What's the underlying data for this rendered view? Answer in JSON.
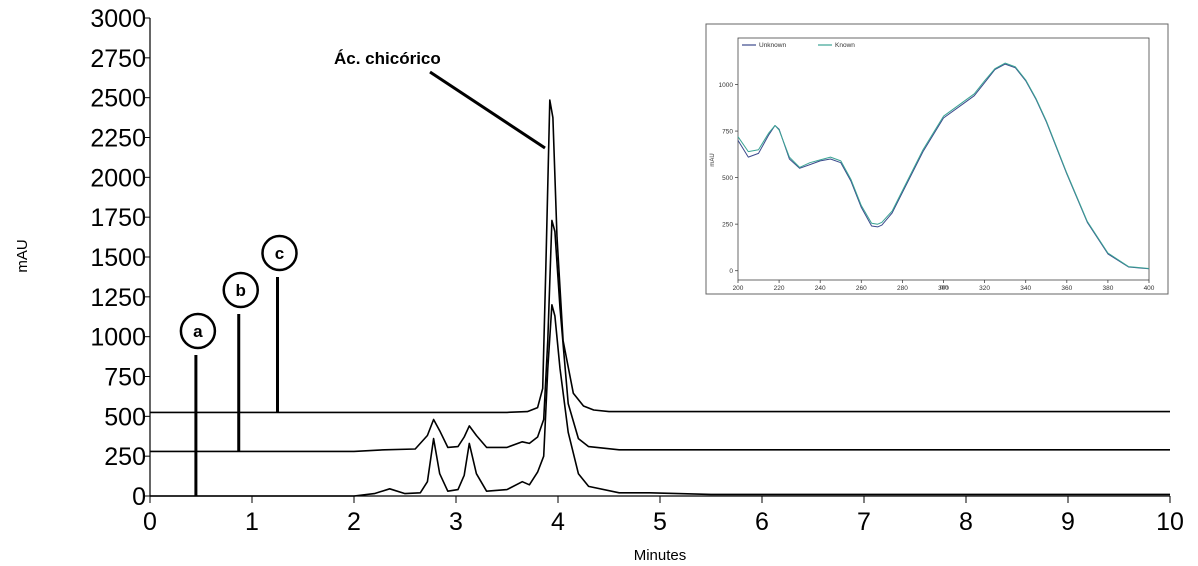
{
  "chart_data": [
    {
      "type": "line",
      "xlabel": "Minutes",
      "ylabel": "mAU",
      "xlim": [
        0,
        10
      ],
      "ylim": [
        0,
        3000
      ],
      "x_ticks": [
        "0",
        "1",
        "2",
        "3",
        "4",
        "5",
        "6",
        "7",
        "8",
        "9",
        "10"
      ],
      "y_ticks": [
        "0",
        "250",
        "500",
        "750",
        "1000",
        "1250",
        "1500",
        "1750",
        "2000",
        "2250",
        "2500",
        "2750",
        "3000"
      ],
      "annotation": {
        "label": "Ác. chicórico",
        "x": 3.93,
        "y": 2300
      },
      "series": [
        {
          "name": "a",
          "label_x": 0.45,
          "offset": 0,
          "x": [
            0,
            2.0,
            2.2,
            2.35,
            2.5,
            2.65,
            2.72,
            2.78,
            2.84,
            2.92,
            3.02,
            3.08,
            3.13,
            3.2,
            3.3,
            3.5,
            3.65,
            3.72,
            3.8,
            3.86,
            3.9,
            3.94,
            3.97,
            4.02,
            4.1,
            4.2,
            4.3,
            4.6,
            4.9,
            5.5,
            10
          ],
          "y": [
            0,
            0,
            15,
            45,
            15,
            20,
            90,
            360,
            140,
            30,
            40,
            130,
            330,
            140,
            30,
            40,
            90,
            70,
            150,
            250,
            800,
            1200,
            1130,
            800,
            400,
            140,
            60,
            20,
            20,
            10,
            10
          ]
        },
        {
          "name": "b",
          "label_x": 0.87,
          "offset": 280,
          "x": [
            0,
            2.0,
            2.3,
            2.6,
            2.72,
            2.78,
            2.84,
            2.92,
            3.02,
            3.08,
            3.13,
            3.2,
            3.3,
            3.5,
            3.65,
            3.72,
            3.8,
            3.86,
            3.9,
            3.94,
            3.97,
            4.02,
            4.1,
            4.2,
            4.3,
            4.6,
            10
          ],
          "y": [
            0,
            0,
            10,
            15,
            100,
            200,
            130,
            25,
            30,
            90,
            160,
            100,
            25,
            25,
            60,
            50,
            90,
            200,
            700,
            1450,
            1380,
            900,
            300,
            80,
            30,
            10,
            10
          ]
        },
        {
          "name": "c",
          "label_x": 1.25,
          "offset": 525,
          "x": [
            0,
            3.5,
            3.7,
            3.8,
            3.85,
            3.88,
            3.92,
            3.95,
            3.99,
            4.05,
            4.15,
            4.25,
            4.35,
            4.5,
            10
          ],
          "y": [
            0,
            0,
            5,
            30,
            150,
            900,
            1960,
            1850,
            1100,
            450,
            120,
            40,
            15,
            5,
            5
          ]
        }
      ]
    },
    {
      "type": "line",
      "xlabel": "nm",
      "ylabel": "mAU",
      "xlim": [
        200,
        400
      ],
      "ylim": [
        -50,
        1250
      ],
      "x_ticks": [
        "200",
        "220",
        "240",
        "260",
        "280",
        "300",
        "320",
        "340",
        "360",
        "380",
        "400"
      ],
      "y_ticks": [
        "0",
        "250",
        "500",
        "750",
        "1000"
      ],
      "legend": "top-left",
      "series": [
        {
          "name": "Unknown",
          "color": "#3b4a8c",
          "x": [
            200,
            205,
            210,
            215,
            218,
            220,
            225,
            230,
            235,
            240,
            245,
            250,
            255,
            260,
            265,
            268,
            270,
            275,
            280,
            290,
            300,
            310,
            315,
            320,
            325,
            330,
            335,
            340,
            345,
            350,
            360,
            370,
            380,
            390,
            400
          ],
          "y": [
            700,
            610,
            630,
            730,
            780,
            760,
            600,
            550,
            570,
            590,
            600,
            580,
            480,
            340,
            240,
            235,
            245,
            310,
            420,
            640,
            820,
            900,
            940,
            1010,
            1080,
            1110,
            1090,
            1020,
            920,
            800,
            520,
            260,
            90,
            20,
            10
          ]
        },
        {
          "name": "Known",
          "color": "#3aa394",
          "x": [
            200,
            205,
            210,
            215,
            218,
            220,
            225,
            230,
            235,
            240,
            245,
            250,
            255,
            260,
            265,
            268,
            270,
            275,
            280,
            290,
            300,
            310,
            315,
            320,
            325,
            330,
            335,
            340,
            345,
            350,
            360,
            370,
            380,
            390,
            400
          ],
          "y": [
            720,
            640,
            650,
            740,
            780,
            755,
            610,
            555,
            580,
            595,
            610,
            590,
            490,
            350,
            255,
            250,
            260,
            320,
            430,
            650,
            830,
            910,
            950,
            1020,
            1085,
            1115,
            1095,
            1025,
            925,
            805,
            525,
            265,
            95,
            22,
            12
          ]
        }
      ]
    }
  ]
}
